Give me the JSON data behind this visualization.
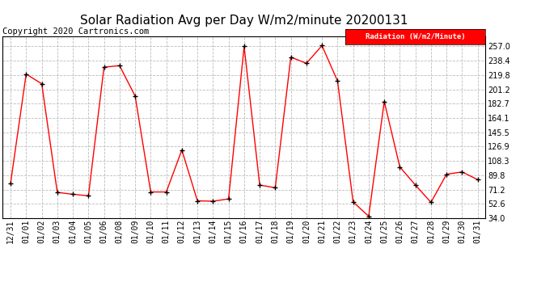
{
  "title": "Solar Radiation Avg per Day W/m2/minute 20200131",
  "copyright": "Copyright 2020 Cartronics.com",
  "legend_label": "Radiation (W/m2/Minute)",
  "labels": [
    "12/31",
    "01/01",
    "01/02",
    "01/03",
    "01/04",
    "01/05",
    "01/06",
    "01/08",
    "01/09",
    "01/10",
    "01/11",
    "01/12",
    "01/13",
    "01/14",
    "01/15",
    "01/16",
    "01/17",
    "01/18",
    "01/19",
    "01/20",
    "01/21",
    "01/22",
    "01/23",
    "01/24",
    "01/25",
    "01/26",
    "01/27",
    "01/28",
    "01/29",
    "01/30",
    "01/31"
  ],
  "values": [
    79.5,
    221.0,
    208.5,
    67.5,
    65.0,
    63.0,
    230.0,
    232.0,
    192.5,
    68.0,
    68.0,
    122.5,
    56.5,
    56.0,
    59.0,
    257.0,
    77.0,
    73.5,
    243.0,
    235.0,
    258.0,
    212.0,
    55.0,
    36.5,
    185.5,
    100.5,
    77.0,
    54.5,
    91.0,
    94.0,
    84.0
  ],
  "ylim": [
    34.0,
    270.0
  ],
  "yticks": [
    34.0,
    52.6,
    71.2,
    89.8,
    108.3,
    126.9,
    145.5,
    164.1,
    182.7,
    201.2,
    219.8,
    238.4,
    257.0
  ],
  "line_color": "red",
  "marker_color": "black",
  "bg_color": "white",
  "grid_color": "#bbbbbb",
  "title_fontsize": 11,
  "copyright_fontsize": 7.5,
  "tick_fontsize": 7,
  "legend_bg": "red",
  "legend_text_color": "white"
}
